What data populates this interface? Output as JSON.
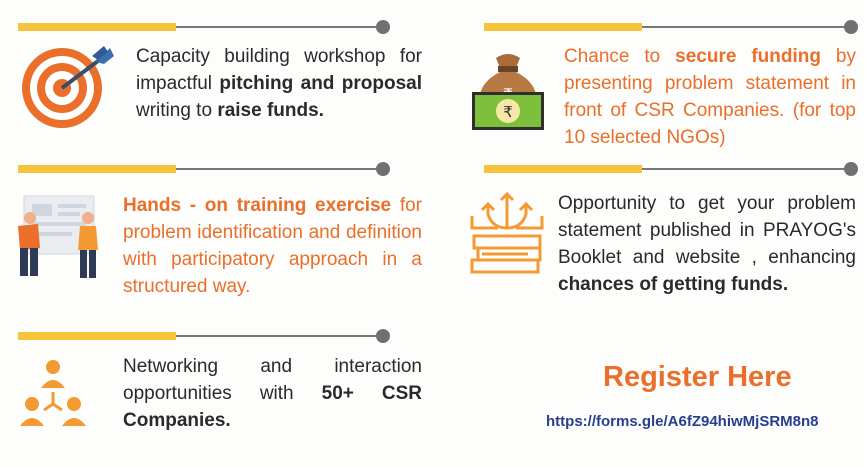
{
  "blocks": [
    {
      "parts": [
        {
          "text": "Capacity building workshop for impactful ",
          "bold": false
        },
        {
          "text": "pitching and proposal",
          "bold": true
        },
        {
          "text": " writing to ",
          "bold": false
        },
        {
          "text": "raise funds.",
          "bold": true
        }
      ]
    },
    {
      "parts": [
        {
          "text": "Chance to ",
          "bold": false
        },
        {
          "text": "secure funding",
          "bold": true
        },
        {
          "text": " by presenting problem statement in front of CSR Companies. (for top 10 selected NGOs)",
          "bold": false
        }
      ]
    },
    {
      "parts": [
        {
          "text": "Hands - on training exercise",
          "bold": true
        },
        {
          "text": " for problem identification and definition with participatory approach in a structured way.",
          "bold": false
        }
      ]
    },
    {
      "parts": [
        {
          "text": "Opportunity to get your problem statement published in PRAYOG's Booklet and website , enhancing ",
          "bold": false
        },
        {
          "text": "chances of getting funds.",
          "bold": true
        }
      ]
    },
    {
      "parts": [
        {
          "text": "Networking and interaction opportunities with ",
          "bold": false
        },
        {
          "text": "50+ CSR Companies.",
          "bold": true
        }
      ]
    }
  ],
  "register": {
    "label": "Register Here",
    "url": "https://forms.gle/A6fZ94hiwMjSRM8n8"
  },
  "icons": {
    "target": "target-dart-icon",
    "money": "money-bag-rupee-icon",
    "training": "training-people-icon",
    "publish": "book-stack-arrows-icon",
    "network": "network-people-icon"
  },
  "colors": {
    "accent": "#e96f2b",
    "bar": "#f6c33c",
    "link": "#283e8f",
    "text": "#2a2a2a"
  }
}
